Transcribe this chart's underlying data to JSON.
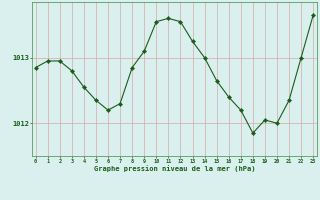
{
  "x": [
    0,
    1,
    2,
    3,
    4,
    5,
    6,
    7,
    8,
    9,
    10,
    11,
    12,
    13,
    14,
    15,
    16,
    17,
    18,
    19,
    20,
    21,
    22,
    23
  ],
  "y": [
    1012.85,
    1012.95,
    1012.95,
    1012.8,
    1012.55,
    1012.35,
    1012.2,
    1012.3,
    1012.85,
    1013.1,
    1013.55,
    1013.6,
    1013.55,
    1013.25,
    1013.0,
    1012.65,
    1012.4,
    1012.2,
    1011.85,
    1012.05,
    1012.0,
    1012.35,
    1013.0,
    1013.65
  ],
  "line_color": "#1a5c1a",
  "marker": "D",
  "marker_size": 2.2,
  "bg_color": "#daf0ef",
  "vgrid_color": "#d8a8a8",
  "hgrid_color": "#d8a8a8",
  "xlabel": "Graphe pression niveau de la mer (hPa)",
  "xlabel_color": "#1a5c1a",
  "tick_color": "#1a5c1a",
  "ytick_labels": [
    "1012",
    "1013"
  ],
  "ytick_values": [
    1012.0,
    1013.0
  ],
  "ylim": [
    1011.5,
    1013.85
  ],
  "xlim": [
    -0.3,
    23.3
  ],
  "border_color": "#5a9a5a"
}
